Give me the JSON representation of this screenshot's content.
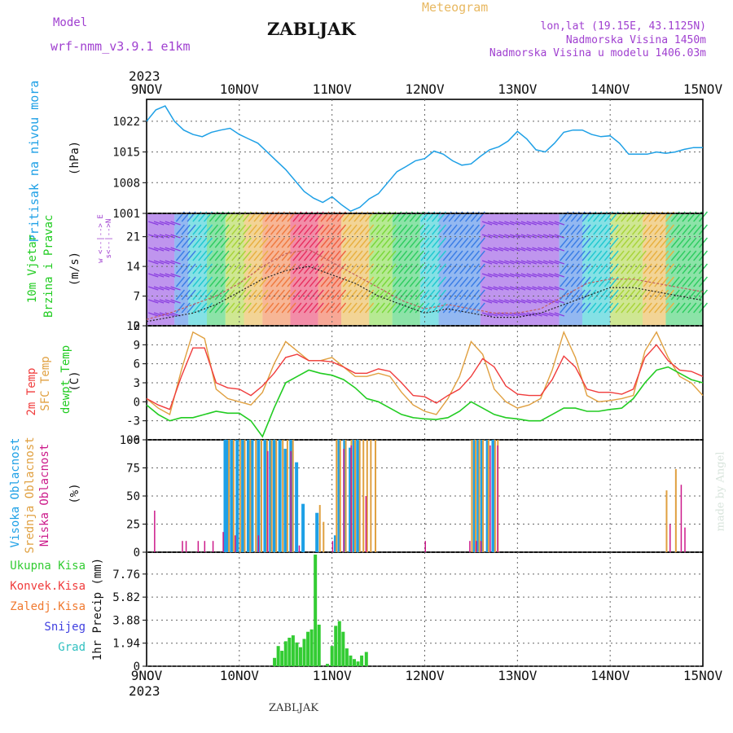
{
  "header": {
    "model_label": "Model",
    "model_name": "wrf-nmm_v3.9.1  e1km",
    "station": "ZABLJAK",
    "meteogram_label": "Meteogram",
    "lonlat": "lon,lat (19.15E, 43.1125N)",
    "altitude": "Nadmorska Visina 1450m",
    "model_altitude": "Nadmorska Visina u modelu 1406.03m",
    "year_top": "2023",
    "year_bottom": "2023",
    "footer_station": "ZABLJAK",
    "credit": "made by Angel"
  },
  "days": [
    "9NOV",
    "10NOV",
    "11NOV",
    "12NOV",
    "13NOV",
    "14NOV",
    "15NOV"
  ],
  "panel_labels": {
    "pressure": [
      "Pritisak na nivou mora",
      "(hPa)"
    ],
    "wind": [
      "10m Vjetar",
      "Brzina i Pravac",
      "(m/s)"
    ],
    "compass": [
      "w  <--|-->  E",
      "s<--|-->N"
    ],
    "temp": [
      "2m Temp",
      "SFC Temp",
      "dewpt Temp",
      "(C)"
    ],
    "cloud": [
      "Visoka Oblacnost",
      "Srednja Oblacnost",
      "Niska Oblacnost",
      "(%)"
    ],
    "precip_unit": "1hr Precip (mm)",
    "precip_legend": [
      "Ukupna Kisa",
      "Konvek.Kisa",
      "Zaledj.Kisa",
      "Snijeg",
      "Grad"
    ]
  },
  "colors": {
    "pressure": "#1ea0e6",
    "temp2m": "#f03c3c",
    "sfc": "#e0a040",
    "dewpt": "#22cc22",
    "high_cloud": "#1ea0e6",
    "mid_cloud": "#e0a040",
    "low_cloud": "#cc1a8a",
    "total_rain": "#33cc33",
    "conv_rain": "#f03c3c",
    "frz_rain": "#f07a30",
    "snow": "#4040e0",
    "hail": "#30c0c0",
    "purple_text": "#a040d0",
    "gold_text": "#e8b860"
  },
  "chart_data": [
    {
      "type": "line",
      "title": "Pritisak na nivou mora",
      "ylabel": "(hPa)",
      "yticks": [
        "1001",
        "1008",
        "1015",
        "1022"
      ],
      "ylim": [
        1001,
        1027
      ],
      "xlim": [
        0,
        6
      ],
      "x": [
        0,
        0.1,
        0.2,
        0.3,
        0.4,
        0.5,
        0.6,
        0.7,
        0.8,
        0.9,
        1.0,
        1.1,
        1.2,
        1.3,
        1.4,
        1.5,
        1.6,
        1.7,
        1.8,
        1.9,
        2.0,
        2.1,
        2.2,
        2.3,
        2.4,
        2.5,
        2.6,
        2.7,
        2.8,
        2.9,
        3.0,
        3.1,
        3.2,
        3.3,
        3.4,
        3.5,
        3.6,
        3.7,
        3.8,
        3.9,
        4.0,
        4.1,
        4.2,
        4.3,
        4.4,
        4.5,
        4.6,
        4.7,
        4.8,
        4.9,
        5.0,
        5.1,
        5.2,
        5.3,
        5.4,
        5.5,
        5.6,
        5.7,
        5.8,
        5.9,
        6.0
      ],
      "series": [
        {
          "values": [
            1022,
            1024.6,
            1025.5,
            1022,
            1020,
            1019,
            1018.5,
            1019.5,
            1020,
            1020.4,
            1019,
            1018,
            1017,
            1015,
            1013,
            1011,
            1008.5,
            1006,
            1004.5,
            1003.5,
            1004.8,
            1003,
            1001.5,
            1002.4,
            1004.3,
            1005.5,
            1008,
            1010.5,
            1011.7,
            1013,
            1013.5,
            1015.2,
            1014.5,
            1013,
            1012,
            1012.3,
            1014,
            1015.5,
            1016.2,
            1017.5,
            1019.7,
            1018,
            1015.5,
            1015,
            1017,
            1019.5,
            1020,
            1020,
            1019,
            1018.5,
            1018.7,
            1017,
            1014.5,
            1014.5,
            1014.5,
            1015,
            1014.7,
            1015,
            1015.6,
            1016,
            1016
          ]
        }
      ]
    },
    {
      "type": "line",
      "title": "10m Vjetar Brzina i Pravac",
      "ylabel": "(m/s)",
      "yticks": [
        "0",
        "7",
        "14",
        "21"
      ],
      "ylim": [
        0,
        26.5
      ],
      "xlim": [
        0,
        6
      ],
      "x": [
        0,
        0.25,
        0.5,
        0.75,
        1.0,
        1.25,
        1.5,
        1.75,
        2.0,
        2.25,
        2.5,
        2.75,
        3.0,
        3.25,
        3.5,
        3.75,
        4.0,
        4.25,
        4.5,
        4.75,
        5.0,
        5.25,
        5.5,
        5.75,
        6.0
      ],
      "series": [
        {
          "name": "wind speed",
          "values": [
            1,
            2,
            3,
            5,
            8,
            11,
            13,
            14,
            12,
            10,
            7,
            5,
            3,
            4,
            3,
            2,
            2,
            3,
            5,
            7,
            9,
            9,
            8,
            7,
            6
          ]
        },
        {
          "name": "gust",
          "values": [
            1.5,
            3,
            5,
            7,
            10,
            14,
            17,
            18,
            15,
            12,
            9,
            6,
            4,
            5,
            4,
            3,
            3,
            4,
            7,
            10,
            11,
            11,
            10,
            9,
            8
          ]
        }
      ]
    },
    {
      "type": "line",
      "title": "2m Temp / SFC Temp / dewpt Temp",
      "ylabel": "(C)",
      "yticks": [
        "-6",
        "-3",
        "0",
        "3",
        "6",
        "9",
        "12"
      ],
      "ylim": [
        -6,
        12
      ],
      "xlim": [
        0,
        6
      ],
      "x": [
        0,
        0.125,
        0.25,
        0.375,
        0.5,
        0.625,
        0.75,
        0.875,
        1.0,
        1.125,
        1.25,
        1.375,
        1.5,
        1.625,
        1.75,
        1.875,
        2.0,
        2.125,
        2.25,
        2.375,
        2.5,
        2.625,
        2.75,
        2.875,
        3.0,
        3.125,
        3.25,
        3.375,
        3.5,
        3.625,
        3.75,
        3.875,
        4.0,
        4.125,
        4.25,
        4.375,
        4.5,
        4.625,
        4.75,
        4.875,
        5.0,
        5.125,
        5.25,
        5.375,
        5.5,
        5.625,
        5.75,
        5.875,
        6.0
      ],
      "series": [
        {
          "name": "2m Temp",
          "values": [
            0.5,
            -0.5,
            -1.2,
            4,
            8.5,
            8.5,
            3,
            2.2,
            2,
            1,
            2.5,
            4.5,
            7,
            7.5,
            6.5,
            6.5,
            6.3,
            5.5,
            4.5,
            4.5,
            5.2,
            4.8,
            3,
            1,
            0.8,
            -0.2,
            1,
            2,
            4,
            6.8,
            5.5,
            2.5,
            1.2,
            1,
            1,
            3.5,
            7.2,
            5.5,
            2,
            1.5,
            1.5,
            1.2,
            2,
            7,
            9,
            6.5,
            5,
            4.8,
            4
          ]
        },
        {
          "name": "SFC Temp",
          "values": [
            0.5,
            -1,
            -2,
            5,
            11,
            10,
            2,
            0.5,
            0,
            -0.5,
            1.5,
            6,
            9.5,
            8,
            6.5,
            6.5,
            7,
            5.5,
            4,
            4,
            4.5,
            4,
            1.5,
            -0.5,
            -1.5,
            -2,
            0.5,
            4,
            9.5,
            7.5,
            2,
            0,
            -1,
            -0.5,
            0.5,
            5,
            11,
            7,
            1,
            0,
            0.2,
            0.5,
            1,
            8,
            11,
            7,
            4,
            3,
            1
          ]
        },
        {
          "name": "dewpt Temp",
          "values": [
            -0.5,
            -2,
            -3,
            -2.5,
            -2.5,
            -2,
            -1.5,
            -1.8,
            -1.8,
            -3,
            -5.5,
            -1,
            3,
            4,
            5,
            4.5,
            4.2,
            3.5,
            2.2,
            0.5,
            0,
            -1,
            -2,
            -2.5,
            -2.7,
            -2.8,
            -2.5,
            -1.5,
            0,
            -1,
            -2,
            -2.5,
            -2.7,
            -3,
            -3,
            -2,
            -1,
            -1,
            -1.5,
            -1.5,
            -1.2,
            -1,
            0.5,
            3,
            5,
            5.5,
            4.5,
            3.5,
            3
          ]
        }
      ]
    },
    {
      "type": "bar",
      "title": "Visoka / Srednja / Niska Oblacnost",
      "ylabel": "(%)",
      "yticks": [
        "0",
        "25",
        "50",
        "75",
        "100"
      ],
      "ylim": [
        0,
        100
      ],
      "xlim": [
        0,
        6
      ],
      "series": [
        {
          "name": "Visoka Oblacnost",
          "x": [
            0.83,
            0.86,
            0.9,
            0.96,
            1.02,
            1.08,
            1.12,
            1.19,
            1.26,
            1.32,
            1.36,
            1.42,
            1.48,
            1.54,
            1.6,
            1.67,
            1.82,
            2.02,
            2.06,
            2.12,
            2.18,
            2.22,
            2.26,
            3.52,
            3.56,
            3.6,
            3.66,
            3.72
          ],
          "values": [
            100,
            100,
            100,
            100,
            100,
            100,
            100,
            100,
            100,
            100,
            100,
            100,
            92,
            100,
            80,
            43,
            35,
            15,
            100,
            100,
            93,
            100,
            100,
            100,
            100,
            100,
            100,
            100
          ]
        },
        {
          "name": "Srednja Oblacnost",
          "x": [
            0.88,
            0.93,
            1.0,
            1.05,
            1.11,
            1.17,
            1.23,
            1.29,
            1.34,
            1.39,
            1.46,
            1.51,
            1.57,
            1.86,
            1.9,
            2.04,
            2.08,
            2.14,
            2.2,
            2.24,
            2.29,
            2.33,
            2.37,
            2.41,
            2.46,
            3.5,
            3.54,
            3.58,
            3.62,
            3.68,
            3.75,
            3.78,
            5.6,
            5.7
          ],
          "values": [
            100,
            100,
            100,
            100,
            100,
            100,
            100,
            100,
            100,
            100,
            100,
            100,
            100,
            42,
            27,
            100,
            100,
            100,
            100,
            100,
            100,
            100,
            100,
            100,
            100,
            100,
            100,
            100,
            100,
            100,
            100,
            100,
            55,
            74
          ]
        },
        {
          "name": "Niska Oblacnost",
          "x": [
            0.08,
            0.38,
            0.42,
            0.55,
            0.62,
            0.71,
            0.82,
            0.95,
            1.2,
            1.3,
            1.55,
            1.64,
            2.0,
            2.12,
            2.2,
            2.36,
            3.0,
            3.48,
            3.55,
            3.6,
            3.7,
            3.78,
            5.64,
            5.76,
            5.8
          ],
          "values": [
            37,
            10,
            10,
            10,
            10,
            10,
            18,
            15,
            15,
            90,
            90,
            6,
            10,
            92,
            95,
            50,
            10,
            10,
            10,
            10,
            95,
            95,
            25,
            60,
            22
          ]
        }
      ]
    },
    {
      "type": "bar",
      "title": "1hr Precip",
      "ylabel": "1hr Precip (mm)",
      "yticks": [
        "0",
        "1.94",
        "3.88",
        "5.82",
        "7.76"
      ],
      "ylim": [
        0,
        9.6
      ],
      "xlim": [
        0,
        6
      ],
      "series": [
        {
          "name": "Ukupna Kisa",
          "x": [
            1.38,
            1.42,
            1.46,
            1.5,
            1.54,
            1.58,
            1.62,
            1.66,
            1.7,
            1.74,
            1.78,
            1.82,
            1.86,
            1.95,
            2.0,
            2.04,
            2.08,
            2.12,
            2.16,
            2.2,
            2.24,
            2.28,
            2.32,
            2.37
          ],
          "values": [
            0.7,
            1.7,
            1.3,
            2.1,
            2.4,
            2.6,
            2.0,
            1.6,
            2.3,
            2.9,
            3.1,
            9.4,
            3.5,
            0.2,
            1.7,
            3.4,
            3.8,
            2.9,
            1.5,
            0.9,
            0.6,
            0.4,
            0.9,
            1.2
          ]
        }
      ]
    }
  ]
}
